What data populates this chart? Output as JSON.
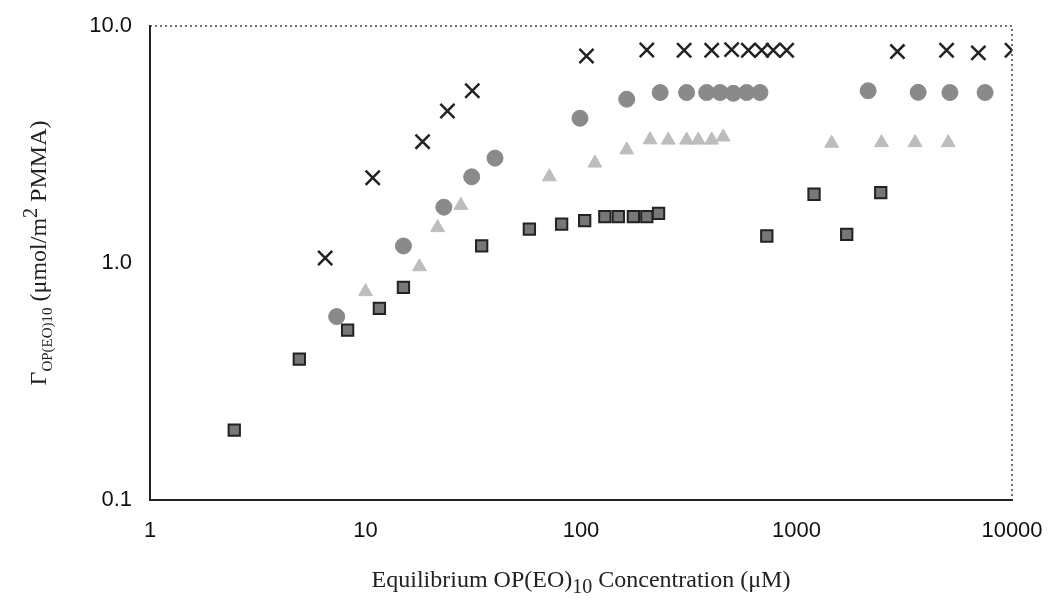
{
  "chart_data": {
    "type": "scatter",
    "xlabel": "Equilibrium OP(EO)$_{10}$ Concentration (μM)",
    "ylabel": "Γ$_{OP(EO)10}$ (μmol/m$^{2}$ PMMA)",
    "log": "xy",
    "grid": false,
    "legend": false,
    "xlim": [
      1,
      10000
    ],
    "xticks": [
      1,
      10,
      100,
      1000,
      10000
    ],
    "ylim": [
      0.1,
      10
    ],
    "yticks": [
      {
        "value": 0.1,
        "label": "0.1"
      },
      {
        "value": 1,
        "label": "1.0"
      },
      {
        "value": 10,
        "label": "10.0"
      }
    ],
    "series": [
      {
        "color": "#222222",
        "marker": "cross",
        "x": [
          6.5,
          10.8,
          18.4,
          24,
          31.3,
          106,
          202,
          301,
          404,
          500,
          598,
          689,
          780,
          900,
          2940,
          4970,
          6980,
          10000
        ],
        "values": [
          1.05,
          2.29,
          3.25,
          4.38,
          5.33,
          7.47,
          7.92,
          7.9,
          7.9,
          7.95,
          7.9,
          7.9,
          7.9,
          7.9,
          7.8,
          7.9,
          7.7,
          7.9
        ]
      },
      {
        "color": "#8a8a8a",
        "marker": "circle",
        "x": [
          7.35,
          15,
          23.1,
          31.1,
          39.9,
          98.9,
          163,
          233,
          309,
          383,
          442,
          509,
          587,
          677,
          2150,
          3670,
          5150,
          7500
        ],
        "values": [
          0.594,
          1.18,
          1.72,
          2.31,
          2.77,
          4.08,
          4.91,
          5.24,
          5.24,
          5.24,
          5.24,
          5.2,
          5.24,
          5.24,
          5.33,
          5.25,
          5.24,
          5.24
        ]
      },
      {
        "color": "#bdbdbd",
        "marker": "triangle",
        "x": [
          10,
          17.8,
          21.6,
          27.7,
          71.3,
          116,
          163,
          209,
          254,
          309,
          350,
          404,
          457,
          1456,
          2480,
          3550,
          5060
        ],
        "values": [
          0.757,
          0.964,
          1.41,
          1.75,
          2.31,
          2.64,
          3.0,
          3.31,
          3.3,
          3.3,
          3.3,
          3.3,
          3.4,
          3.2,
          3.22,
          3.22,
          3.22
        ]
      },
      {
        "color": "#777777",
        "marker": "square",
        "x": [
          2.46,
          4.93,
          8.26,
          11.6,
          15,
          34.6,
          57.6,
          81.3,
          104,
          129,
          149,
          175,
          202,
          229,
          728,
          1206,
          1710,
          2460
        ],
        "values": [
          0.197,
          0.393,
          0.521,
          0.644,
          0.789,
          1.18,
          1.39,
          1.46,
          1.51,
          1.57,
          1.57,
          1.57,
          1.57,
          1.62,
          1.3,
          1.95,
          1.32,
          1.98
        ]
      }
    ]
  }
}
